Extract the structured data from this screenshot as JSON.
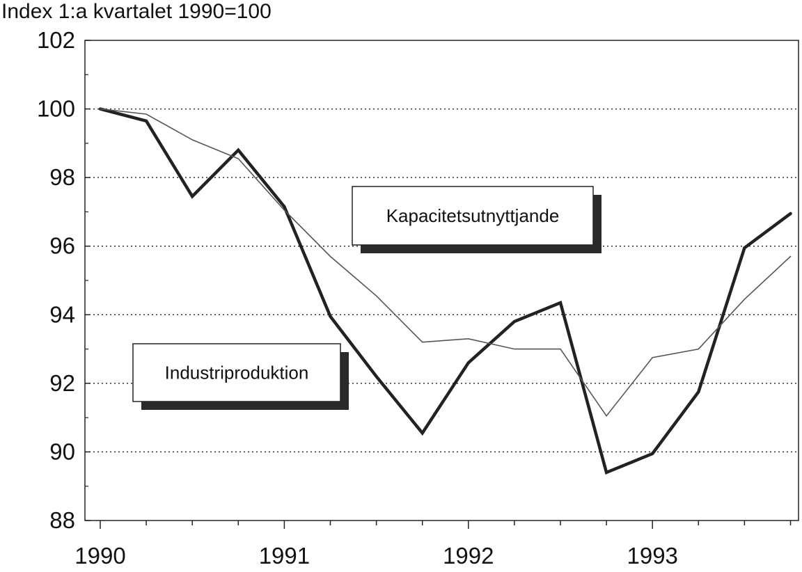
{
  "chart_data": {
    "type": "line",
    "ylabel": "Index 1:a kvartalet 1990=100",
    "ylim": [
      88,
      102
    ],
    "yticks": [
      "88",
      "90",
      "92",
      "94",
      "96",
      "98",
      "100",
      "102"
    ],
    "xticks": [
      "1990",
      "1991",
      "1992",
      "1993"
    ],
    "grid": true,
    "x": [
      "1990Q1",
      "1990Q2",
      "1990Q3",
      "1990Q4",
      "1991Q1",
      "1991Q2",
      "1991Q3",
      "1991Q4",
      "1992Q1",
      "1992Q2",
      "1992Q3",
      "1992Q4",
      "1993Q1",
      "1993Q2",
      "1993Q3",
      "1993Q4"
    ],
    "series": [
      {
        "name": "Industriproduktion",
        "values": [
          100.0,
          99.65,
          97.45,
          98.8,
          97.15,
          93.95,
          92.2,
          90.55,
          92.6,
          93.8,
          94.35,
          89.4,
          89.95,
          91.75,
          95.95,
          96.95
        ],
        "color": "#222222"
      },
      {
        "name": "Kapacitetsutnyttjande",
        "values": [
          100.0,
          99.85,
          99.1,
          98.55,
          97.05,
          95.7,
          94.55,
          93.2,
          93.3,
          93.0,
          93.0,
          91.05,
          92.75,
          93.0,
          94.45,
          95.7
        ],
        "color": "#555555"
      }
    ]
  }
}
